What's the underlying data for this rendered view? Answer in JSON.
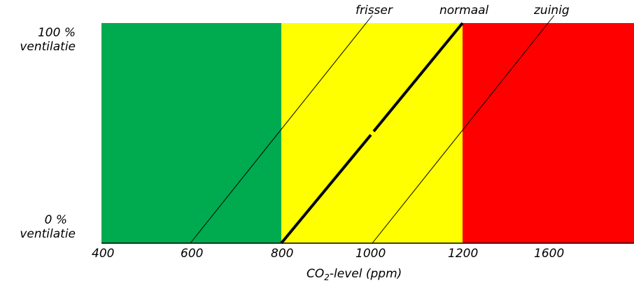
{
  "diagram": {
    "y_labels": {
      "top_line1": "100 %",
      "top_line2": "ventilatie",
      "bottom_line1": "0 %",
      "bottom_line2": "ventilatie"
    },
    "x_axis": {
      "ticks": [
        "400",
        "600",
        "800",
        "1000",
        "1200",
        "1600"
      ],
      "label_prefix": "CO",
      "label_subscript": "2",
      "label_suffix": "-level (ppm)"
    },
    "zones": [
      {
        "color": "#00AA4F"
      },
      {
        "color": "#FFFF00"
      },
      {
        "color": "#FF0000"
      }
    ],
    "curves": [
      {
        "label": "frisser"
      },
      {
        "label": "normaal"
      },
      {
        "label": "zuinig"
      }
    ]
  }
}
